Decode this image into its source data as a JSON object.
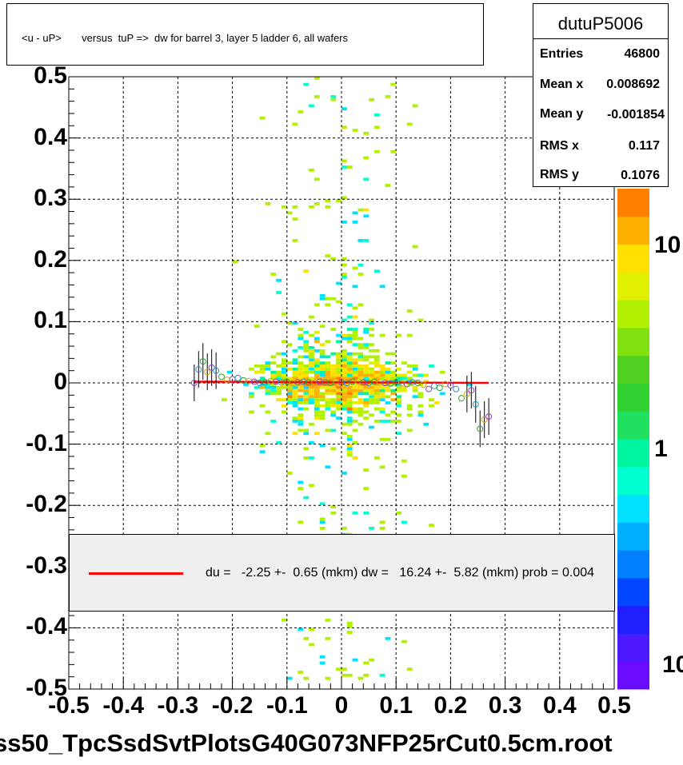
{
  "title": "<u - uP>       versus  tuP =>  dw for barrel 3, layer 5 ladder 6, all wafers",
  "stats": {
    "name": "dutuP5006",
    "rows": [
      {
        "label": "Entries",
        "value": "46800"
      },
      {
        "label": "Mean x",
        "value": "0.008692"
      },
      {
        "label": "Mean y",
        "value": "-0.001854"
      },
      {
        "label": "RMS x",
        "value": "0.117"
      },
      {
        "label": "RMS y",
        "value": "0.1076"
      }
    ]
  },
  "legend": {
    "text": "du =   -2.25 +-  0.65 (mkm) dw =   16.24 +-  5.82 (mkm) prob = 0.004",
    "line_color": "#ff0000"
  },
  "footer": "ss50_TpcSsdSvtPlotsG40G073NFP25rCut0.5cm.root",
  "chart_data": {
    "type": "heatmap",
    "xlim": [
      -0.5,
      0.5
    ],
    "ylim": [
      -0.5,
      0.5
    ],
    "x_ticks": [
      "-0.5",
      "-0.4",
      "-0.3",
      "-0.2",
      "-0.1",
      "0",
      "0.1",
      "0.2",
      "0.3",
      "0.4",
      "0.5"
    ],
    "y_ticks": [
      "-0.5",
      "-0.4",
      "-0.3",
      "-0.2",
      "-0.1",
      "0",
      "0.1",
      "0.2",
      "0.3",
      "0.4",
      "0.5"
    ],
    "z_scale": "log",
    "z_ticks": [
      "10",
      "1",
      "10"
    ],
    "grid": true,
    "entries": 46800,
    "mean_x": 0.008692,
    "mean_y": -0.001854,
    "rms_x": 0.117,
    "rms_y": 0.1076,
    "fit_line": {
      "x": [
        -0.27,
        0.27
      ],
      "y": [
        0.002,
        0.0
      ],
      "color": "#ff0000"
    },
    "profile_points": {
      "x": [
        -0.27,
        -0.262,
        -0.254,
        -0.246,
        -0.238,
        -0.23,
        -0.22,
        -0.21,
        -0.2,
        -0.19,
        -0.18,
        -0.17,
        -0.16,
        -0.15,
        -0.14,
        -0.13,
        -0.12,
        -0.11,
        -0.1,
        -0.09,
        -0.08,
        -0.07,
        -0.06,
        -0.05,
        -0.04,
        -0.03,
        -0.02,
        -0.01,
        0.0,
        0.01,
        0.02,
        0.03,
        0.04,
        0.05,
        0.06,
        0.07,
        0.08,
        0.09,
        0.1,
        0.11,
        0.12,
        0.13,
        0.14,
        0.15,
        0.16,
        0.17,
        0.18,
        0.19,
        0.2,
        0.21,
        0.22,
        0.23,
        0.238,
        0.246,
        0.254,
        0.262,
        0.27
      ],
      "y": [
        0.0,
        0.022,
        0.035,
        0.018,
        0.025,
        0.02,
        0.01,
        0.005,
        0.006,
        0.008,
        0.004,
        0.003,
        0.002,
        0.0,
        0.001,
        0.003,
        0.002,
        0.001,
        0.002,
        0.0,
        0.001,
        0.002,
        0.001,
        0.0,
        0.002,
        0.001,
        0.0,
        0.002,
        0.001,
        0.0,
        0.002,
        0.003,
        0.001,
        0.0,
        0.002,
        0.001,
        0.0,
        -0.001,
        0.001,
        0.0,
        -0.002,
        0.001,
        0.0,
        -0.003,
        -0.01,
        -0.005,
        -0.008,
        -0.002,
        -0.004,
        -0.01,
        -0.025,
        -0.018,
        -0.012,
        -0.035,
        -0.075,
        -0.06,
        -0.055
      ],
      "marker_colors": [
        "#8a3fbf",
        "#1f8fcf",
        "#2fa02f",
        "#d4a020"
      ]
    },
    "palette": [
      "#6a0dff",
      "#4d1aff",
      "#2020ff",
      "#0047ff",
      "#0080ff",
      "#00b0ff",
      "#00e0ff",
      "#00ffd0",
      "#00f5a0",
      "#20e060",
      "#30d030",
      "#50d020",
      "#80e010",
      "#b0f000",
      "#e0f000",
      "#ffe000",
      "#ffb000",
      "#ff8000"
    ]
  }
}
